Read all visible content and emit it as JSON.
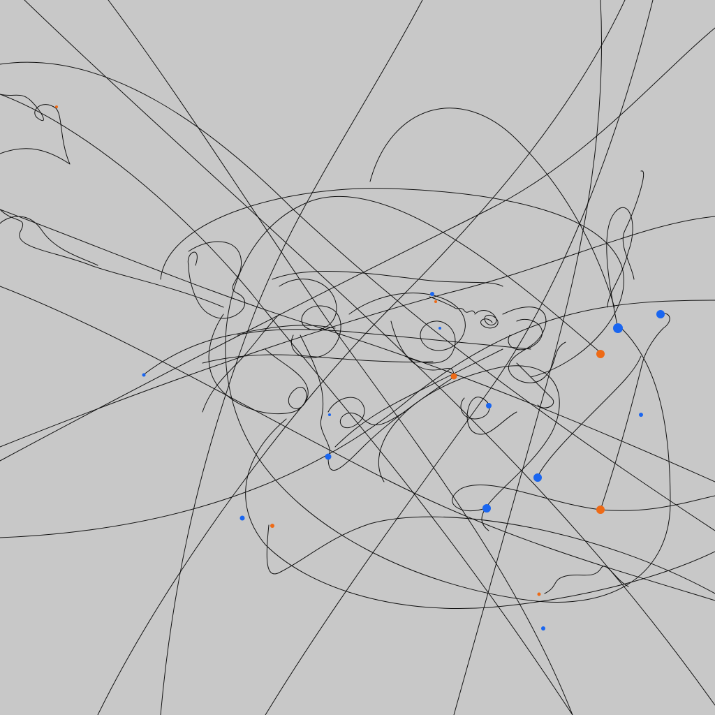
{
  "colors": {
    "background": "#c8c8c8",
    "trail": "#111111",
    "particle_blue": "#1a66f0",
    "particle_orange": "#ee6a16"
  },
  "scene": {
    "particle_kinds": [
      "blue",
      "orange"
    ],
    "particle_count": 22
  }
}
